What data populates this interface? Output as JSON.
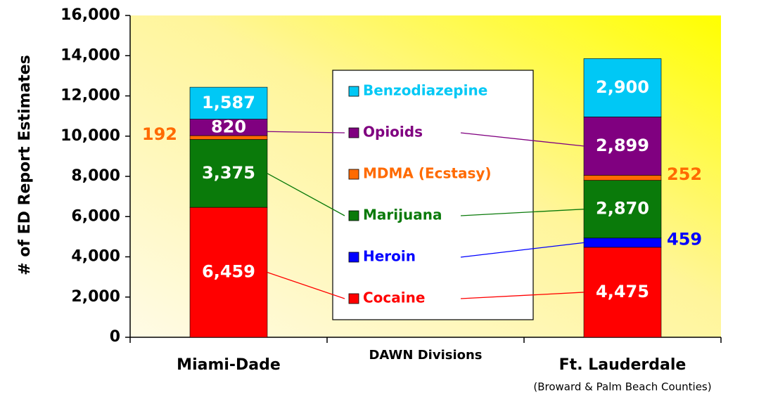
{
  "chart_data": {
    "type": "stacked-bar",
    "y_label": "# of ED Report Estimates",
    "x_label": "DAWN Divisions",
    "annotation": "(Broward & Palm Beach Counties)",
    "categories": [
      "Miami-Dade",
      "Ft. Lauderdale"
    ],
    "series": [
      {
        "name": "Cocaine",
        "color": "#ff0000",
        "values": [
          6459,
          4475
        ],
        "value_labels": [
          "6,459",
          "4,475"
        ]
      },
      {
        "name": "Heroin",
        "color": "#0000ff",
        "values": [
          null,
          459
        ],
        "value_labels": [
          null,
          "459"
        ]
      },
      {
        "name": "Marijuana",
        "color": "#0a7a0a",
        "values": [
          3375,
          2870
        ],
        "value_labels": [
          "3,375",
          "2,870"
        ]
      },
      {
        "name": "MDMA (Ecstasy)",
        "color": "#ff6a00",
        "values": [
          192,
          252
        ],
        "value_labels": [
          "192",
          "252"
        ]
      },
      {
        "name": "Opioids",
        "color": "#800080",
        "values": [
          820,
          2899
        ],
        "value_labels": [
          "820",
          "2,899"
        ]
      },
      {
        "name": "Benzodiazepine",
        "color": "#00c8f5",
        "values": [
          1587,
          2900
        ],
        "value_labels": [
          "1,587",
          "2,900"
        ]
      }
    ],
    "ylim": [
      0,
      16000
    ],
    "yticks": [
      0,
      {
        "value": 2000,
        "label": "2,000"
      },
      {
        "value": 4000,
        "label": "4,000"
      },
      {
        "value": 6000,
        "label": "6,000"
      },
      {
        "value": 8000,
        "label": "8,000"
      },
      {
        "value": 10000,
        "label": "10,000"
      },
      {
        "value": 12000,
        "label": "12,000"
      },
      {
        "value": 14000,
        "label": "14,000"
      },
      {
        "value": 16000,
        "label": "16,000"
      }
    ]
  }
}
